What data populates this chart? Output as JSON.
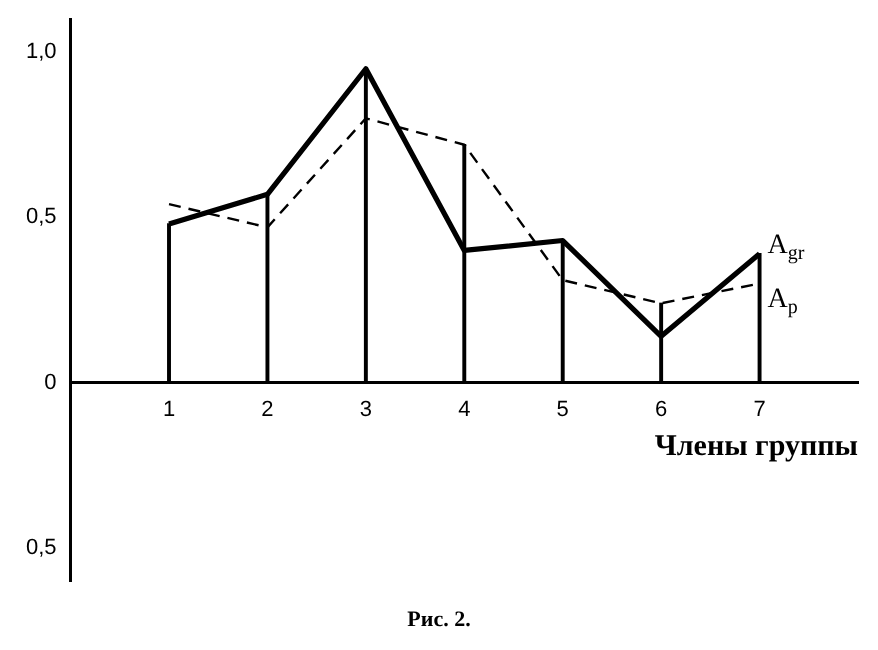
{
  "chart_data": {
    "type": "line",
    "xlabel": "Члены группы",
    "annotations": [
      "Рис. 2."
    ],
    "x": [
      1,
      2,
      3,
      4,
      5,
      6,
      7
    ],
    "xlim": [
      0,
      8
    ],
    "xticks": [
      1,
      2,
      3,
      4,
      5,
      6,
      7
    ],
    "ylim": [
      -0.6,
      1.1
    ],
    "yticks": [
      {
        "value": -0.5,
        "label": "0,5"
      },
      {
        "value": 0,
        "label": "0"
      },
      {
        "value": 0.5,
        "label": "0,5"
      },
      {
        "value": 1,
        "label": "1,0"
      }
    ],
    "series": [
      {
        "name": "A$_{gr}$",
        "color": "#000000",
        "line_style": "solid",
        "values": [
          0.48,
          0.57,
          0.95,
          0.4,
          0.43,
          0.14,
          0.39
        ]
      },
      {
        "name": "A$_{p}$",
        "color": "#000000",
        "line_style": "dashed",
        "values": [
          0.54,
          0.47,
          0.8,
          0.72,
          0.31,
          0.24,
          0.3
        ]
      },
      {
        "type": "bar",
        "color": "#000000",
        "values": [
          0.48,
          0.57,
          0.95,
          0.72,
          0.43,
          0.24,
          0.39
        ]
      }
    ],
    "marker": "none",
    "grid": false,
    "legend": false
  }
}
